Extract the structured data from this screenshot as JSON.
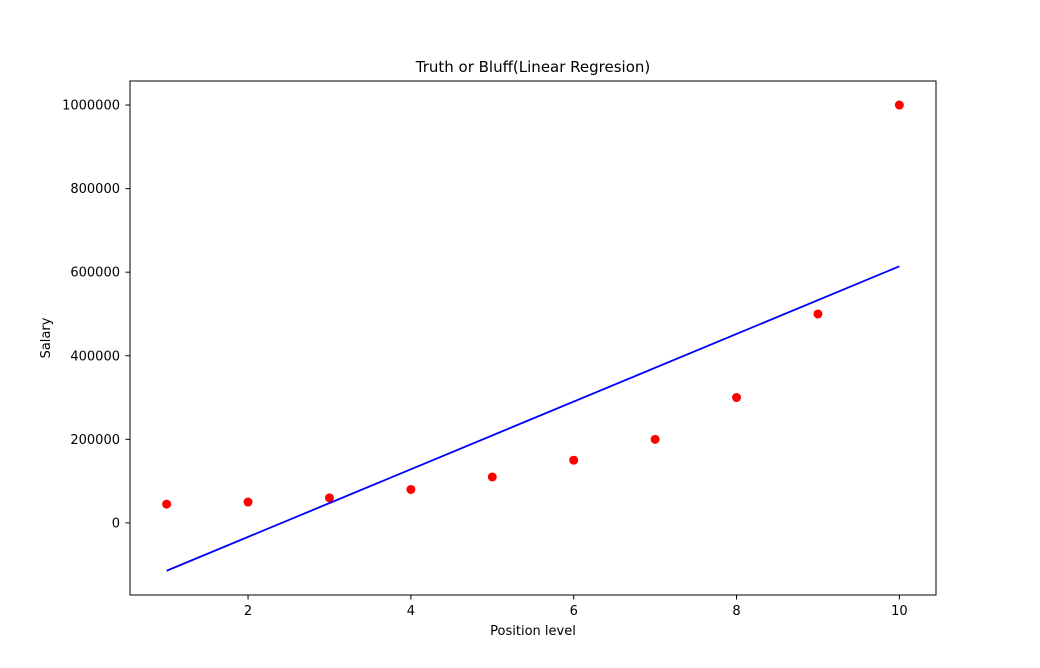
{
  "chart_data": {
    "type": "scatter",
    "title": "Truth or Bluff(Linear Regresion)",
    "xlabel": "Position level",
    "ylabel": "Salary",
    "xlim": [
      0.55,
      10.45
    ],
    "ylim": [
      -172500,
      1057500
    ],
    "x_ticks": [
      2,
      4,
      6,
      8,
      10
    ],
    "y_ticks": [
      0,
      200000,
      400000,
      600000,
      800000,
      1000000
    ],
    "grid": false,
    "legend": "none",
    "series": [
      {
        "kind": "scatter",
        "color": "#ff0000",
        "points": [
          {
            "x": 1,
            "y": 45000
          },
          {
            "x": 2,
            "y": 50000
          },
          {
            "x": 3,
            "y": 60000
          },
          {
            "x": 4,
            "y": 80000
          },
          {
            "x": 5,
            "y": 110000
          },
          {
            "x": 6,
            "y": 150000
          },
          {
            "x": 7,
            "y": 200000
          },
          {
            "x": 8,
            "y": 300000
          },
          {
            "x": 9,
            "y": 500000
          },
          {
            "x": 10,
            "y": 1000000
          }
        ]
      },
      {
        "kind": "line",
        "color": "#0000ff",
        "points": [
          {
            "x": 1,
            "y": -114454.55
          },
          {
            "x": 10,
            "y": 614090.91
          }
        ]
      }
    ]
  }
}
